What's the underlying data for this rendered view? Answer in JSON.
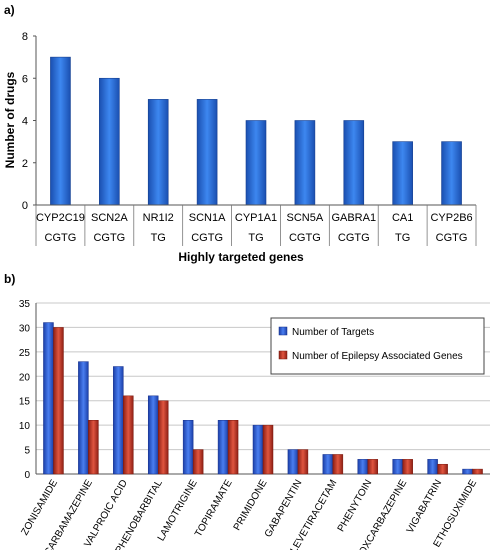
{
  "chart_data": [
    {
      "panel_label": "a)",
      "type": "bar",
      "categories": [
        "CYP2C19",
        "SCN2A",
        "NR1I2",
        "SCN1A",
        "CYP1A1",
        "SCN5A",
        "GABRA1",
        "CA1",
        "CYP2B6"
      ],
      "subcategories": [
        "CGTG",
        "CGTG",
        "TG",
        "CGTG",
        "TG",
        "CGTG",
        "CGTG",
        "TG",
        "CGTG"
      ],
      "values": [
        7,
        6,
        5,
        5,
        4,
        4,
        4,
        3,
        3
      ],
      "xlabel": "Highly targeted genes",
      "ylabel": "Number of drugs",
      "ylim": [
        0,
        8
      ],
      "yticks": [
        0,
        2,
        4,
        6,
        8
      ],
      "grid": false,
      "colors": {
        "bar": "#2f6fd6"
      }
    },
    {
      "panel_label": "b)",
      "type": "bar",
      "categories": [
        "ZONISAMIDE",
        "CARBAMAZEPINE",
        "VALPROIC ACID",
        "PHENOBARBITAL",
        "LAMOTRIGINE",
        "TOPIRAMATE",
        "PRIMIDONE",
        "GABAPENTIN",
        "LEVETIRACETAM",
        "PHENYTOIN",
        "OXCARBAZEPINE",
        "VIGABATRIN",
        "ETHOSUXIMIDE"
      ],
      "series": [
        {
          "name": "Number of Targets",
          "values": [
            31,
            23,
            22,
            16,
            11,
            11,
            10,
            5,
            4,
            3,
            3,
            3,
            1
          ],
          "color": "#2e5fd1"
        },
        {
          "name": "Number of Epilepsy Associated Genes",
          "values": [
            30,
            11,
            16,
            15,
            5,
            11,
            10,
            5,
            4,
            3,
            3,
            2,
            1
          ],
          "color": "#c0392b"
        }
      ],
      "ylim": [
        0,
        35
      ],
      "yticks": [
        0,
        5,
        10,
        15,
        20,
        25,
        30,
        35
      ],
      "grid": true,
      "legend": "top-right"
    }
  ]
}
